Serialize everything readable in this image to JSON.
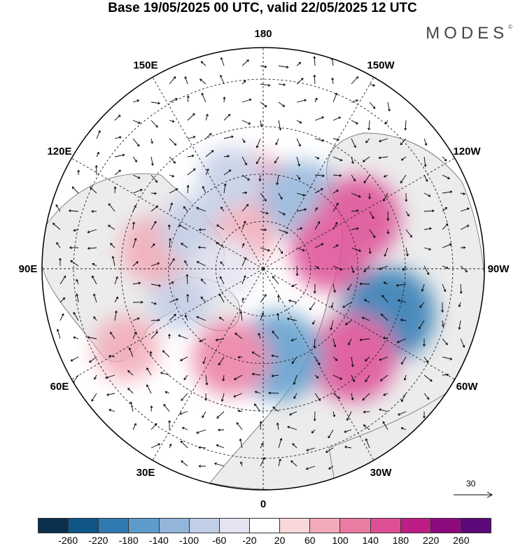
{
  "header": {
    "title": "Base 19/05/2025 00 UTC, valid 22/05/2025 12 UTC",
    "brand": "MODES",
    "brand_mark": "©"
  },
  "map": {
    "projection": "north-polar-stereographic",
    "longitude_labels": [
      "180",
      "150E",
      "120E",
      "90E",
      "60E",
      "30E",
      "0",
      "30W",
      "60W",
      "90W",
      "120W",
      "150W"
    ],
    "graticule_style": "dashed",
    "anomaly_cells": [
      {
        "lon": 172,
        "lat": 62,
        "value": 60
      },
      {
        "lon": -178,
        "lat": 68,
        "value": 120
      },
      {
        "lon": 160,
        "lat": 60,
        "value": -80
      },
      {
        "lon": -150,
        "lat": 65,
        "value": -140
      },
      {
        "lon": -118,
        "lat": 56,
        "value": 160
      },
      {
        "lon": -105,
        "lat": 68,
        "value": 140
      },
      {
        "lon": -70,
        "lat": 48,
        "value": -200
      },
      {
        "lon": -45,
        "lat": 50,
        "value": 170
      },
      {
        "lon": -10,
        "lat": 62,
        "value": -180
      },
      {
        "lon": 20,
        "lat": 60,
        "value": 120
      },
      {
        "lon": 60,
        "lat": 40,
        "value": 80
      },
      {
        "lon": 70,
        "lat": 62,
        "value": -70
      },
      {
        "lon": 100,
        "lat": 55,
        "value": 90
      },
      {
        "lon": 120,
        "lat": 65,
        "value": -90
      },
      {
        "lon": 150,
        "lat": 78,
        "value": 60
      },
      {
        "lon": 90,
        "lat": 78,
        "value": -60
      }
    ]
  },
  "wind_scale": {
    "label": "30"
  },
  "colorbar": {
    "colors": [
      "#0b2f4f",
      "#0f5587",
      "#2f7ab3",
      "#5d9bcb",
      "#93b5da",
      "#c2cde6",
      "#e3e3f1",
      "#ffffff",
      "#f8d8d8",
      "#f2aab8",
      "#ea7ca3",
      "#de4e95",
      "#bd1d84",
      "#8c0a7c",
      "#5b0879"
    ],
    "ticks": [
      "-260",
      "-220",
      "-180",
      "-140",
      "-100",
      "-60",
      "-20",
      "20",
      "60",
      "100",
      "140",
      "180",
      "220",
      "260"
    ]
  }
}
